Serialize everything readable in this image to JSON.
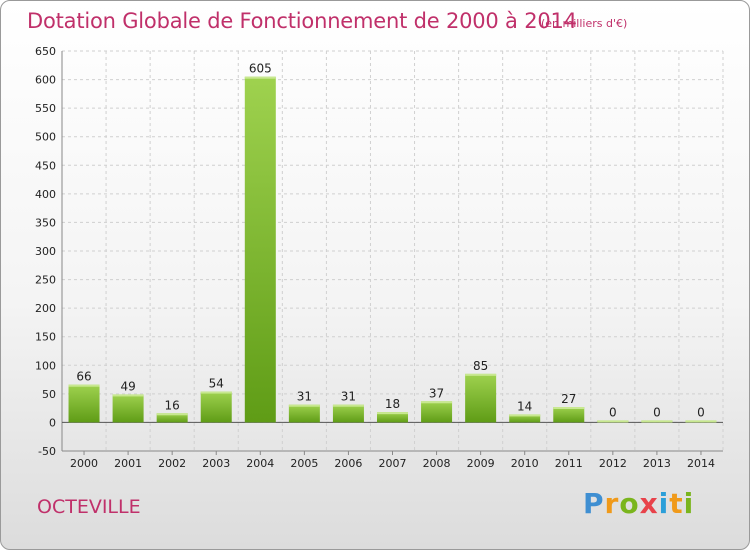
{
  "title": "Dotation Globale de Fonctionnement de 2000 à 2014",
  "unit_note": "(en milliers d'€)",
  "commune": "OCTEVILLE",
  "logo": {
    "letters": [
      "P",
      "r",
      "o",
      "x",
      "i",
      "t",
      "i"
    ],
    "colors": [
      "#3f8fd2",
      "#f09a1a",
      "#7ab51d",
      "#e8424a",
      "#2b9fd9",
      "#f09a1a",
      "#7ab51d"
    ]
  },
  "colors": {
    "title": "#c0306a",
    "bar_light": "#9fd24f",
    "bar_dark": "#5f9c16",
    "grid": "#d0d0d0",
    "axis_text": "#222222"
  },
  "chart_data": {
    "type": "bar",
    "title": "Dotation Globale de Fonctionnement de 2000 à 2014",
    "categories": [
      "2000",
      "2001",
      "2002",
      "2003",
      "2004",
      "2005",
      "2006",
      "2007",
      "2008",
      "2009",
      "2010",
      "2011",
      "2012",
      "2013",
      "2014"
    ],
    "values": [
      66,
      49,
      16,
      54,
      605,
      31,
      31,
      18,
      37,
      85,
      14,
      27,
      0,
      0,
      0
    ],
    "ylim": [
      -50,
      650
    ],
    "yticks": [
      -50,
      0,
      50,
      100,
      150,
      200,
      250,
      300,
      350,
      400,
      450,
      500,
      550,
      600,
      650
    ],
    "grid": true,
    "legend": "none"
  }
}
